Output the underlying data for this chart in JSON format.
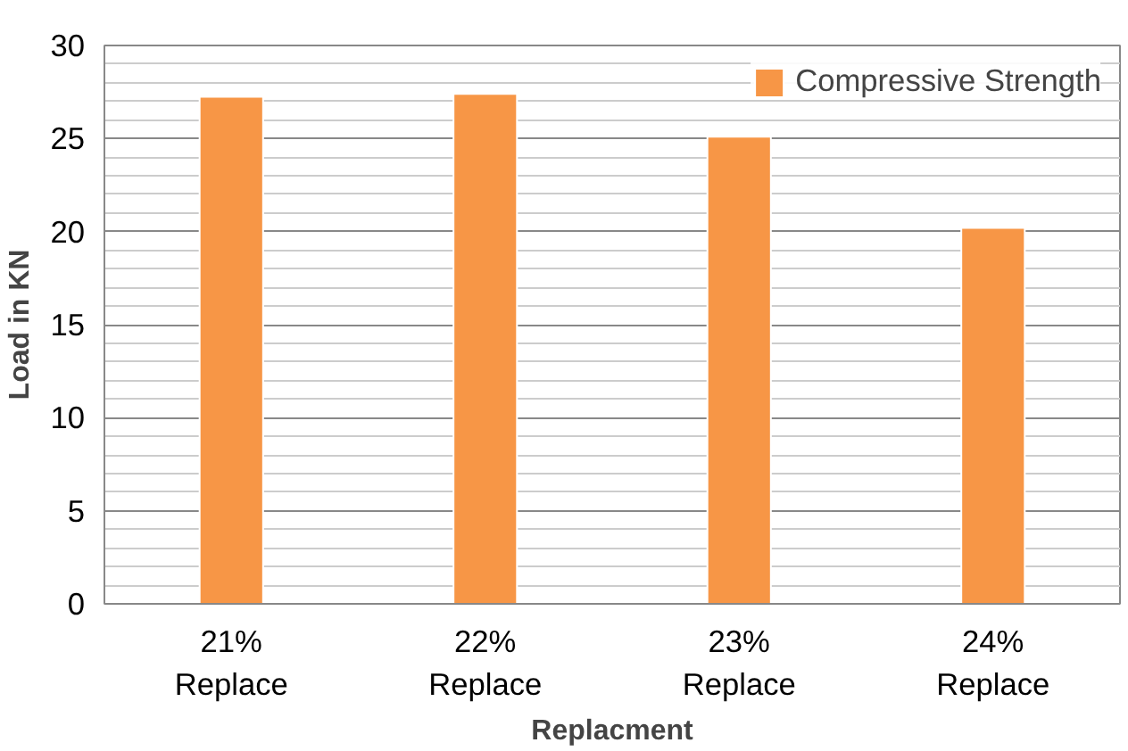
{
  "chart_data": {
    "type": "bar",
    "xlabel": "Replacment",
    "ylabel": "Load in KN",
    "categories": [
      "21%\nReplace",
      "22%\nReplace",
      "23%\nReplace",
      "24%\nReplace"
    ],
    "series": [
      {
        "name": "Compressive Strength",
        "color": "#f79646",
        "values": [
          27.25,
          27.4,
          25.1,
          20.2
        ]
      }
    ],
    "ylim": [
      0,
      30
    ],
    "yticks": [
      0,
      5,
      10,
      15,
      20,
      25,
      30
    ],
    "grid": "y",
    "legend": "top right"
  }
}
